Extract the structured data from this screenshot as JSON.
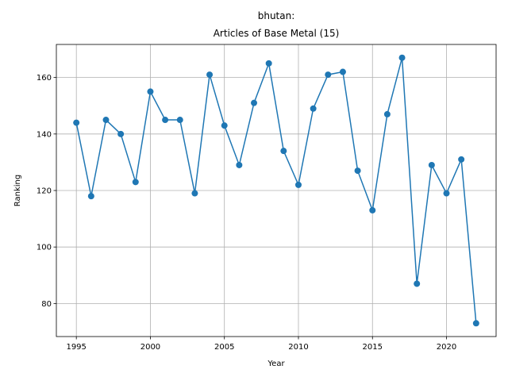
{
  "chart_data": {
    "type": "line",
    "title": [
      "bhutan:",
      "Articles of Base Metal (15)"
    ],
    "x_label": "Year",
    "y_label": "Ranking",
    "x": [
      1995,
      1996,
      1997,
      1998,
      1999,
      2000,
      2001,
      2002,
      2003,
      2004,
      2005,
      2006,
      2007,
      2008,
      2009,
      2010,
      2011,
      2012,
      2013,
      2014,
      2015,
      2016,
      2017,
      2018,
      2019,
      2020,
      2021,
      2022
    ],
    "series": [
      {
        "name": "Ranking",
        "color": "#1f77b4",
        "values": [
          144,
          118,
          145,
          140,
          123,
          155,
          145,
          145,
          119,
          161,
          143,
          129,
          151,
          165,
          134,
          122,
          149,
          161,
          162,
          127,
          113,
          147,
          167,
          87,
          129,
          119,
          131,
          73
        ]
      }
    ],
    "xlim": [
      1993.65,
      2023.35
    ],
    "xticks": [
      1995,
      2000,
      2005,
      2010,
      2015,
      2020
    ],
    "ylim": [
      68.3,
      171.7
    ],
    "yticks": [
      80,
      100,
      120,
      140,
      160
    ],
    "grid": true
  }
}
